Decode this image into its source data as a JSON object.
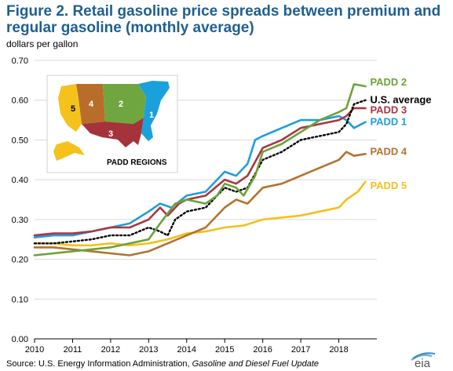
{
  "title": "Figure 2. Retail gasoline price spreads between premium and regular gasoline (monthly average)",
  "source_prefix": "Source: U.S. Energy Information Administration, ",
  "source_italic": "Gasoline and Diesel Fuel Update",
  "logo_text": "eia",
  "map": {
    "title": "PADD REGIONS",
    "regions": [
      {
        "label": "1",
        "color": "#1aa1dc"
      },
      {
        "label": "2",
        "color": "#70a640"
      },
      {
        "label": "3",
        "color": "#a5333c"
      },
      {
        "label": "4",
        "color": "#b86e2a"
      },
      {
        "label": "5",
        "color": "#f5c21b"
      }
    ]
  },
  "chart_data": {
    "type": "line",
    "ylabel": "dollars per gallon",
    "ylim": [
      0,
      0.7
    ],
    "yticks": [
      "0.00",
      "0.10",
      "0.20",
      "0.30",
      "0.40",
      "0.50",
      "0.60",
      "0.70"
    ],
    "xlim": [
      2010,
      2019
    ],
    "xticks": [
      "2010",
      "2011",
      "2012",
      "2013",
      "2014",
      "2015",
      "2016",
      "2017",
      "2018"
    ],
    "grid": "horizontal",
    "legend": "line-end labels (right)",
    "series": [
      {
        "name": "PADD 2",
        "color": "#6aa33a",
        "width": 2.6,
        "dash": "",
        "label_y": 0.645,
        "points": [
          [
            2010,
            0.21
          ],
          [
            2010.5,
            0.215
          ],
          [
            2011,
            0.22
          ],
          [
            2011.5,
            0.225
          ],
          [
            2012,
            0.23
          ],
          [
            2012.5,
            0.24
          ],
          [
            2013,
            0.25
          ],
          [
            2013.3,
            0.29
          ],
          [
            2013.7,
            0.34
          ],
          [
            2014,
            0.35
          ],
          [
            2014.5,
            0.34
          ],
          [
            2014.8,
            0.36
          ],
          [
            2015,
            0.39
          ],
          [
            2015.3,
            0.38
          ],
          [
            2015.5,
            0.36
          ],
          [
            2015.8,
            0.41
          ],
          [
            2016,
            0.47
          ],
          [
            2016.5,
            0.49
          ],
          [
            2017,
            0.52
          ],
          [
            2017.5,
            0.55
          ],
          [
            2018,
            0.57
          ],
          [
            2018.2,
            0.58
          ],
          [
            2018.4,
            0.64
          ],
          [
            2018.7,
            0.635
          ]
        ]
      },
      {
        "name": "U.S. average",
        "color": "#000000",
        "width": 2.4,
        "dash": "2,3",
        "label_y": 0.6,
        "points": [
          [
            2010,
            0.24
          ],
          [
            2010.5,
            0.24
          ],
          [
            2011,
            0.245
          ],
          [
            2011.5,
            0.25
          ],
          [
            2012,
            0.26
          ],
          [
            2012.5,
            0.26
          ],
          [
            2013,
            0.28
          ],
          [
            2013.3,
            0.27
          ],
          [
            2013.5,
            0.26
          ],
          [
            2013.7,
            0.3
          ],
          [
            2014,
            0.32
          ],
          [
            2014.5,
            0.33
          ],
          [
            2015,
            0.38
          ],
          [
            2015.3,
            0.37
          ],
          [
            2015.6,
            0.38
          ],
          [
            2016,
            0.45
          ],
          [
            2016.5,
            0.47
          ],
          [
            2017,
            0.5
          ],
          [
            2017.5,
            0.51
          ],
          [
            2018,
            0.52
          ],
          [
            2018.2,
            0.54
          ],
          [
            2018.4,
            0.59
          ],
          [
            2018.7,
            0.6
          ]
        ]
      },
      {
        "name": "PADD 3",
        "color": "#a83743",
        "width": 2.6,
        "dash": "",
        "label_y": 0.575,
        "points": [
          [
            2010,
            0.26
          ],
          [
            2010.5,
            0.265
          ],
          [
            2011,
            0.265
          ],
          [
            2011.5,
            0.27
          ],
          [
            2012,
            0.28
          ],
          [
            2012.5,
            0.28
          ],
          [
            2013,
            0.3
          ],
          [
            2013.3,
            0.33
          ],
          [
            2013.5,
            0.31
          ],
          [
            2013.8,
            0.34
          ],
          [
            2014,
            0.35
          ],
          [
            2014.5,
            0.36
          ],
          [
            2015,
            0.4
          ],
          [
            2015.3,
            0.39
          ],
          [
            2015.6,
            0.41
          ],
          [
            2016,
            0.48
          ],
          [
            2016.5,
            0.5
          ],
          [
            2017,
            0.53
          ],
          [
            2017.5,
            0.54
          ],
          [
            2018,
            0.55
          ],
          [
            2018.2,
            0.56
          ],
          [
            2018.4,
            0.58
          ],
          [
            2018.7,
            0.58
          ]
        ]
      },
      {
        "name": "PADD 1",
        "color": "#1f9ed8",
        "width": 2.6,
        "dash": "",
        "label_y": 0.545,
        "points": [
          [
            2010,
            0.255
          ],
          [
            2010.5,
            0.26
          ],
          [
            2011,
            0.26
          ],
          [
            2011.5,
            0.27
          ],
          [
            2012,
            0.28
          ],
          [
            2012.5,
            0.29
          ],
          [
            2013,
            0.32
          ],
          [
            2013.3,
            0.34
          ],
          [
            2013.6,
            0.33
          ],
          [
            2014,
            0.36
          ],
          [
            2014.5,
            0.37
          ],
          [
            2015,
            0.42
          ],
          [
            2015.3,
            0.41
          ],
          [
            2015.6,
            0.44
          ],
          [
            2015.8,
            0.5
          ],
          [
            2016,
            0.51
          ],
          [
            2016.5,
            0.53
          ],
          [
            2017,
            0.55
          ],
          [
            2017.5,
            0.55
          ],
          [
            2018,
            0.56
          ],
          [
            2018.2,
            0.55
          ],
          [
            2018.4,
            0.53
          ],
          [
            2018.7,
            0.545
          ]
        ]
      },
      {
        "name": "PADD 4",
        "color": "#b2732f",
        "width": 2.6,
        "dash": "",
        "label_y": 0.47,
        "points": [
          [
            2010,
            0.23
          ],
          [
            2010.5,
            0.23
          ],
          [
            2011,
            0.225
          ],
          [
            2011.5,
            0.22
          ],
          [
            2012,
            0.215
          ],
          [
            2012.5,
            0.21
          ],
          [
            2013,
            0.22
          ],
          [
            2013.5,
            0.24
          ],
          [
            2014,
            0.26
          ],
          [
            2014.5,
            0.28
          ],
          [
            2015,
            0.33
          ],
          [
            2015.3,
            0.35
          ],
          [
            2015.6,
            0.34
          ],
          [
            2016,
            0.38
          ],
          [
            2016.5,
            0.39
          ],
          [
            2017,
            0.41
          ],
          [
            2017.5,
            0.43
          ],
          [
            2018,
            0.45
          ],
          [
            2018.2,
            0.47
          ],
          [
            2018.4,
            0.46
          ],
          [
            2018.7,
            0.465
          ]
        ]
      },
      {
        "name": "PADD 5",
        "color": "#f5c01c",
        "width": 2.6,
        "dash": "",
        "label_y": 0.385,
        "points": [
          [
            2010,
            0.24
          ],
          [
            2010.5,
            0.24
          ],
          [
            2011,
            0.235
          ],
          [
            2011.5,
            0.235
          ],
          [
            2012,
            0.24
          ],
          [
            2012.5,
            0.235
          ],
          [
            2013,
            0.24
          ],
          [
            2013.5,
            0.25
          ],
          [
            2014,
            0.265
          ],
          [
            2014.5,
            0.27
          ],
          [
            2015,
            0.28
          ],
          [
            2015.5,
            0.285
          ],
          [
            2016,
            0.3
          ],
          [
            2016.5,
            0.305
          ],
          [
            2017,
            0.31
          ],
          [
            2017.5,
            0.32
          ],
          [
            2018,
            0.33
          ],
          [
            2018.2,
            0.35
          ],
          [
            2018.5,
            0.37
          ],
          [
            2018.7,
            0.395
          ]
        ]
      }
    ]
  }
}
